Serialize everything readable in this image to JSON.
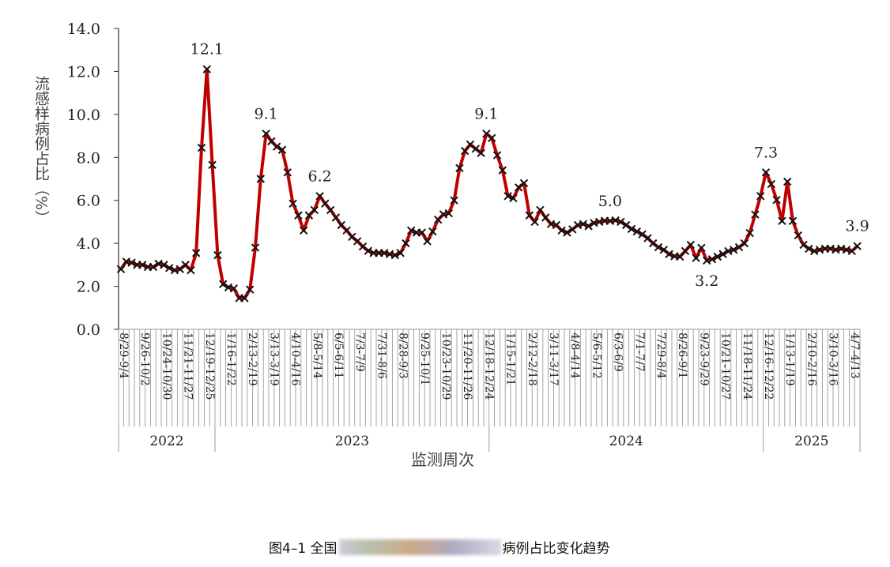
{
  "chart_data": {
    "type": "line",
    "ylabel": "流感样病例占比（%）",
    "xlabel": "监测周次",
    "ylim": [
      0,
      14
    ],
    "yticks": [
      "0.0",
      "2.0",
      "4.0",
      "6.0",
      "8.0",
      "10.0",
      "12.0",
      "14.0"
    ],
    "xtick_labels": [
      "8/29-9/4",
      "9/26-10/2",
      "10/24-10/30",
      "11/21-11/27",
      "12/19-12/25",
      "1/16-1/22",
      "2/13-2/19",
      "3/13-3/19",
      "4/10-4/16",
      "5/8-5/14",
      "6/5-6/11",
      "7/3-7/9",
      "7/31-8/6",
      "8/28-9/3",
      "9/25-10/1",
      "10/23-10/29",
      "11/20-11/26",
      "12/18-12/24",
      "1/15-1/21",
      "2/12-2/18",
      "3/11-3/17",
      "4/8-4/14",
      "5/6-5/12",
      "6/3-6/9",
      "7/1-7/7",
      "7/29-8/4",
      "8/26-9/1",
      "9/23-9/29",
      "10/21-10/27",
      "11/18-11/24",
      "12/16-12/22",
      "1/13-1/19",
      "2/10-2/16",
      "3/10-3/16",
      "4/7-4/13"
    ],
    "xtick_every_weeks": 4,
    "years": [
      {
        "label": "2022",
        "first_week": 0,
        "last_week": 17
      },
      {
        "label": "2023",
        "first_week": 18,
        "last_week": 68
      },
      {
        "label": "2024",
        "first_week": 69,
        "last_week": 119
      },
      {
        "label": "2025",
        "first_week": 120,
        "last_week": 137
      }
    ],
    "series": [
      {
        "color": "#c00000",
        "marker": "x",
        "values": [
          2.8,
          3.15,
          3.1,
          3.0,
          3.0,
          2.9,
          2.9,
          3.05,
          3.0,
          2.85,
          2.75,
          2.8,
          3.0,
          2.75,
          3.55,
          8.45,
          12.1,
          7.65,
          3.45,
          2.1,
          1.95,
          1.9,
          1.45,
          1.45,
          1.85,
          3.8,
          7.0,
          9.1,
          8.75,
          8.5,
          8.35,
          7.3,
          5.85,
          5.3,
          4.6,
          5.3,
          5.55,
          6.2,
          5.85,
          5.55,
          5.2,
          4.85,
          4.6,
          4.3,
          4.1,
          3.85,
          3.65,
          3.55,
          3.55,
          3.55,
          3.5,
          3.45,
          3.55,
          4.0,
          4.6,
          4.5,
          4.5,
          4.1,
          4.55,
          5.1,
          5.35,
          5.4,
          6.0,
          7.5,
          8.3,
          8.6,
          8.4,
          8.2,
          9.1,
          8.9,
          8.1,
          7.4,
          6.2,
          6.1,
          6.6,
          6.8,
          5.3,
          5.0,
          5.55,
          5.2,
          4.9,
          4.85,
          4.6,
          4.5,
          4.65,
          4.85,
          4.9,
          4.8,
          4.95,
          5.0,
          5.05,
          5.04,
          5.07,
          5.0,
          4.85,
          4.67,
          4.55,
          4.42,
          4.24,
          4.0,
          3.82,
          3.7,
          3.5,
          3.4,
          3.38,
          3.64,
          3.93,
          3.32,
          3.79,
          3.2,
          3.26,
          3.38,
          3.5,
          3.64,
          3.7,
          3.82,
          4.0,
          4.48,
          5.34,
          6.2,
          7.3,
          6.76,
          6.02,
          5.04,
          6.87,
          5.04,
          4.37,
          3.93,
          3.75,
          3.64,
          3.7,
          3.75,
          3.75,
          3.7,
          3.75,
          3.7,
          3.64,
          3.87
        ]
      }
    ],
    "annotations": [
      {
        "week": 16,
        "text": "12.1",
        "position": "above"
      },
      {
        "week": 27,
        "text": "9.1",
        "position": "above"
      },
      {
        "week": 37,
        "text": "6.2",
        "position": "above"
      },
      {
        "week": 68,
        "text": "9.1",
        "position": "above"
      },
      {
        "week": 91,
        "text": "5.0",
        "position": "above"
      },
      {
        "week": 109,
        "text": "3.2",
        "position": "below"
      },
      {
        "week": 120,
        "text": "7.3",
        "position": "above"
      },
      {
        "week": 137,
        "text": "3.9",
        "position": "above"
      }
    ],
    "grid": false,
    "legend": "none"
  },
  "caption": {
    "prefix": "图4–1 全国",
    "suffix": "病例占比变化趋势"
  }
}
